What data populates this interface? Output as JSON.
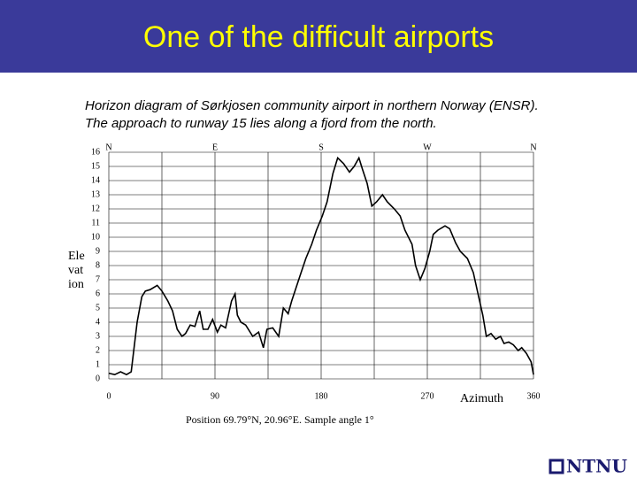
{
  "slide": {
    "title": "One of the difficult airports",
    "caption": [
      "Horizon diagram of Sørkjosen community airport in northern Norway (ENSR).",
      "The approach to runway 15 lies along a fjord from the north."
    ],
    "logo": "NTNU"
  },
  "chart_data": {
    "type": "line",
    "x": [
      0,
      5,
      10,
      15,
      19,
      24,
      28,
      31,
      35,
      41,
      45,
      50,
      54,
      58,
      62,
      65,
      69,
      73,
      77,
      80,
      84,
      88,
      92,
      95,
      99,
      104,
      107,
      109,
      112,
      116,
      122,
      127,
      131,
      134,
      139,
      144,
      148,
      152,
      155,
      159,
      163,
      167,
      172,
      176,
      181,
      185,
      190,
      194,
      199,
      204,
      208,
      212,
      215,
      219,
      223,
      227,
      232,
      236,
      242,
      247,
      251,
      257,
      260,
      264,
      268,
      272,
      275,
      279,
      285,
      289,
      294,
      298,
      304,
      309,
      313,
      317,
      320,
      324,
      328,
      332,
      335,
      339,
      343,
      347,
      350,
      354,
      358,
      360
    ],
    "values": [
      0.4,
      0.3,
      0.5,
      0.3,
      0.5,
      4.0,
      5.8,
      6.2,
      6.3,
      6.6,
      6.2,
      5.5,
      4.8,
      3.5,
      3.0,
      3.2,
      3.8,
      3.7,
      4.8,
      3.5,
      3.5,
      4.2,
      3.3,
      3.8,
      3.6,
      5.5,
      6.0,
      4.5,
      4.0,
      3.8,
      3.0,
      3.3,
      2.2,
      3.5,
      3.6,
      3.0,
      5.0,
      4.6,
      5.5,
      6.5,
      7.5,
      8.5,
      9.5,
      10.5,
      11.5,
      12.5,
      14.5,
      15.6,
      15.2,
      14.6,
      15.0,
      15.6,
      14.8,
      13.8,
      12.2,
      12.5,
      13.0,
      12.5,
      12.0,
      11.5,
      10.5,
      9.5,
      8.0,
      7.0,
      7.8,
      9.0,
      10.2,
      10.5,
      10.8,
      10.6,
      9.6,
      9.0,
      8.5,
      7.5,
      6.0,
      4.5,
      3.0,
      3.2,
      2.8,
      3.0,
      2.5,
      2.6,
      2.4,
      2.0,
      2.2,
      1.8,
      1.2,
      0.3
    ],
    "color": "#000000",
    "xlim": [
      0,
      360
    ],
    "ylim": [
      0,
      16
    ],
    "xticks": [
      0,
      90,
      180,
      270,
      360
    ],
    "xgrid": [
      0,
      45,
      90,
      135,
      180,
      225,
      270,
      315,
      360
    ],
    "yticks": [
      0,
      1,
      2,
      3,
      4,
      5,
      6,
      7,
      8,
      9,
      10,
      11,
      12,
      13,
      14,
      15,
      16
    ],
    "top_ticks": [
      {
        "value": 0,
        "label": "N"
      },
      {
        "value": 90,
        "label": "E"
      },
      {
        "value": 180,
        "label": "S"
      },
      {
        "value": 270,
        "label": "W"
      },
      {
        "value": 360,
        "label": "N"
      }
    ],
    "y_label": [
      "Ele",
      "vat",
      "ion"
    ],
    "x_label": "Azimuth",
    "note": "Position 69.79°N, 20.96°E. Sample angle 1°",
    "grid": true
  }
}
